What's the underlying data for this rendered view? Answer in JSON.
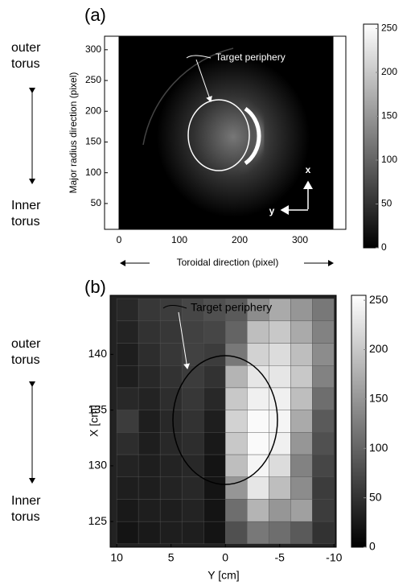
{
  "chart_data": [
    {
      "type": "image",
      "panel_label": "(a)",
      "annotation": "Target periphery",
      "xlabel": "Toroidal direction (pixel)",
      "ylabel": "Major radius direction (pixel)",
      "outer_label": "outer torus",
      "inner_label": "Inner torus",
      "x_arrow_label": "x",
      "y_arrow_label": "y",
      "xlim": [
        -24,
        376
      ],
      "ylim": [
        8,
        322
      ],
      "xticks": [
        0,
        100,
        200,
        300
      ],
      "yticks": [
        50,
        100,
        150,
        200,
        250,
        300
      ],
      "clim": [
        0,
        255
      ],
      "cticks": [
        0,
        50,
        100,
        150,
        200,
        250
      ]
    },
    {
      "type": "heatmap",
      "panel_label": "(b)",
      "annotation": "Target periphery",
      "xlabel": "Y [cm]",
      "ylabel": "X [cm]",
      "outer_label": "outer torus",
      "inner_label": "Inner torus",
      "x": [
        9,
        7,
        5,
        3,
        1,
        -1,
        -3,
        -5,
        -7,
        -9
      ],
      "y": [
        144,
        142,
        140,
        138,
        136,
        134,
        132,
        130,
        128,
        126,
        124
      ],
      "values": [
        [
          40,
          55,
          60,
          70,
          80,
          90,
          140,
          170,
          150,
          120
        ],
        [
          35,
          50,
          55,
          65,
          70,
          100,
          190,
          200,
          170,
          130
        ],
        [
          30,
          45,
          55,
          65,
          60,
          120,
          210,
          220,
          190,
          140
        ],
        [
          30,
          40,
          50,
          60,
          50,
          180,
          230,
          230,
          200,
          130
        ],
        [
          40,
          35,
          45,
          55,
          40,
          200,
          240,
          240,
          190,
          110
        ],
        [
          60,
          30,
          40,
          50,
          30,
          210,
          250,
          245,
          170,
          90
        ],
        [
          45,
          30,
          40,
          45,
          25,
          200,
          250,
          240,
          150,
          80
        ],
        [
          35,
          30,
          35,
          40,
          20,
          190,
          245,
          220,
          130,
          70
        ],
        [
          30,
          30,
          35,
          40,
          20,
          150,
          230,
          190,
          140,
          60
        ],
        [
          25,
          30,
          30,
          35,
          20,
          110,
          180,
          150,
          160,
          60
        ],
        [
          20,
          25,
          30,
          30,
          20,
          80,
          120,
          110,
          90,
          50
        ]
      ],
      "xlim": [
        10.6,
        -10.2
      ],
      "ylim": [
        122.7,
        145.3
      ],
      "xticks": [
        10,
        5,
        0,
        -5,
        -10
      ],
      "yticks": [
        125,
        130,
        135,
        140
      ],
      "clim": [
        0,
        255
      ],
      "cticks": [
        0,
        50,
        100,
        150,
        200,
        250
      ]
    }
  ]
}
